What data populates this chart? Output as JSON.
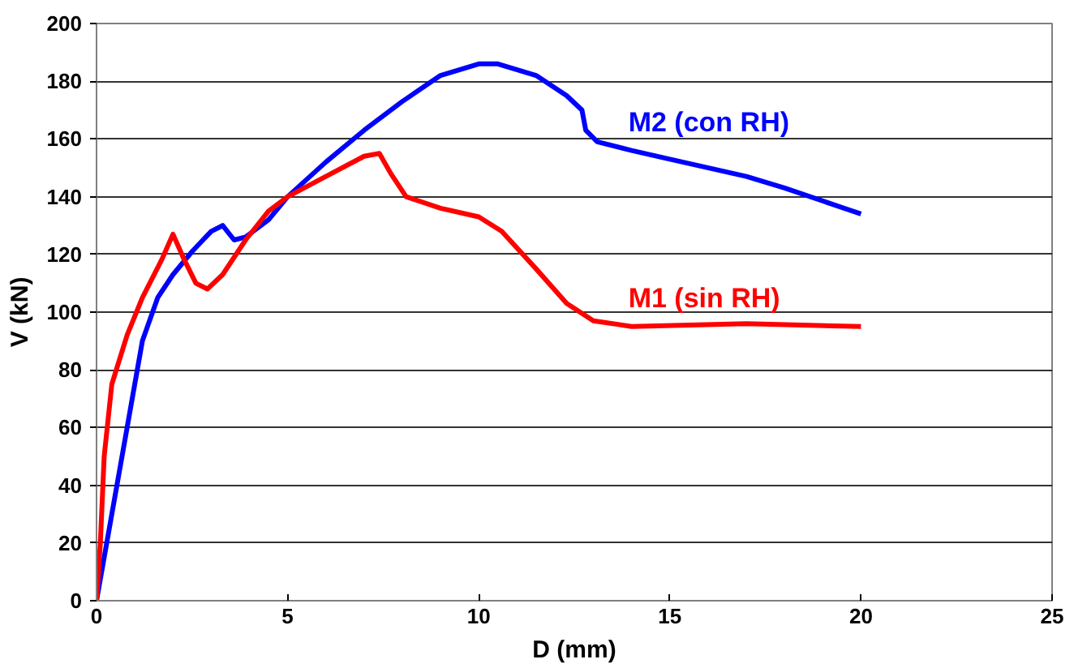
{
  "chart_data": {
    "type": "line",
    "xlabel": "D (mm)",
    "ylabel": "V (kN)",
    "xlim": [
      0,
      25
    ],
    "xticks": [
      0,
      5,
      10,
      15,
      20,
      25
    ],
    "ylim": [
      0,
      200
    ],
    "yticks": [
      0,
      20,
      40,
      60,
      80,
      100,
      120,
      140,
      160,
      180,
      200
    ],
    "grid": "y",
    "marker": "none",
    "line_style": "solid",
    "series": [
      {
        "name": "M2 (con RH)",
        "color": "#0000ff",
        "x": [
          0,
          0.4,
          0.8,
          1.2,
          1.6,
          2,
          2.5,
          3,
          3.3,
          3.6,
          3.9,
          4.5,
          5,
          6,
          7,
          8,
          9,
          10,
          10.5,
          11.5,
          12.3,
          12.7,
          12.8,
          13.1,
          14,
          15,
          17,
          18,
          20
        ],
        "values": [
          0,
          30,
          60,
          90,
          105,
          113,
          121,
          128,
          130,
          125,
          126,
          132,
          140,
          152,
          163,
          173,
          182,
          186,
          186,
          182,
          175,
          170,
          163,
          159,
          156,
          153,
          147,
          143,
          134
        ]
      },
      {
        "name": "M1 (sin RH)",
        "color": "#ff0000",
        "x": [
          0,
          0.1,
          0.2,
          0.4,
          0.8,
          1.2,
          1.7,
          2,
          2.3,
          2.6,
          2.9,
          3.3,
          3.9,
          4.5,
          5,
          6,
          7,
          7.4,
          7.7,
          8.1,
          9,
          10,
          10.6,
          11.5,
          12.3,
          13,
          14,
          17,
          20
        ],
        "values": [
          0,
          20,
          50,
          75,
          92,
          105,
          118,
          127,
          118,
          110,
          108,
          113,
          125,
          135,
          140,
          147,
          154,
          155,
          148,
          140,
          136,
          133,
          128,
          115,
          103,
          97,
          95,
          96,
          95
        ]
      }
    ]
  }
}
